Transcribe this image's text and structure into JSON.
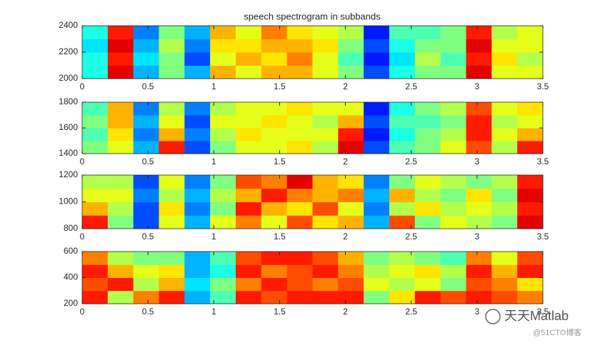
{
  "chart_data": [
    {
      "type": "heatmap",
      "title": "speech spectrogram in subbands",
      "colormap": "jet",
      "clim": [
        0,
        1
      ],
      "xlim": [
        0,
        3.5
      ],
      "xticks": [
        0,
        0.5,
        1,
        1.5,
        2,
        2.5,
        3,
        3.5
      ],
      "ylim": [
        2000,
        2400
      ],
      "yticks": [
        2000,
        2200,
        2400
      ],
      "values": [
        [
          0.4,
          0.9,
          0.3,
          0.5,
          0.3,
          0.7,
          0.6,
          0.7,
          0.7,
          0.6,
          0.5,
          0.2,
          0.4,
          0.5,
          0.5,
          0.9,
          0.6,
          0.6
        ],
        [
          0.4,
          0.85,
          0.35,
          0.5,
          0.2,
          0.6,
          0.7,
          0.65,
          0.75,
          0.6,
          0.45,
          0.15,
          0.35,
          0.55,
          0.45,
          0.85,
          0.65,
          0.55
        ],
        [
          0.35,
          0.9,
          0.3,
          0.55,
          0.25,
          0.65,
          0.65,
          0.7,
          0.7,
          0.65,
          0.5,
          0.2,
          0.4,
          0.5,
          0.5,
          0.9,
          0.6,
          0.6
        ],
        [
          0.4,
          0.85,
          0.25,
          0.5,
          0.3,
          0.7,
          0.6,
          0.75,
          0.65,
          0.6,
          0.55,
          0.15,
          0.45,
          0.45,
          0.5,
          0.85,
          0.55,
          0.6
        ]
      ]
    },
    {
      "type": "heatmap",
      "colormap": "jet",
      "clim": [
        0,
        1
      ],
      "xlim": [
        0,
        3.5
      ],
      "xticks": [
        0,
        0.5,
        1,
        1.5,
        2,
        2.5,
        3,
        3.5
      ],
      "ylim": [
        1400,
        1800
      ],
      "yticks": [
        1400,
        1600,
        1800
      ],
      "values": [
        [
          0.5,
          0.6,
          0.3,
          0.85,
          0.2,
          0.5,
          0.6,
          0.6,
          0.65,
          0.55,
          0.9,
          0.2,
          0.45,
          0.5,
          0.6,
          0.8,
          0.55,
          0.85
        ],
        [
          0.45,
          0.65,
          0.25,
          0.7,
          0.25,
          0.55,
          0.65,
          0.6,
          0.6,
          0.6,
          0.85,
          0.15,
          0.4,
          0.5,
          0.55,
          0.85,
          0.6,
          0.7
        ],
        [
          0.5,
          0.7,
          0.3,
          0.6,
          0.2,
          0.6,
          0.6,
          0.65,
          0.6,
          0.55,
          0.7,
          0.2,
          0.45,
          0.45,
          0.5,
          0.85,
          0.55,
          0.6
        ],
        [
          0.45,
          0.7,
          0.25,
          0.55,
          0.25,
          0.55,
          0.6,
          0.6,
          0.65,
          0.6,
          0.6,
          0.15,
          0.4,
          0.5,
          0.55,
          0.8,
          0.6,
          0.65
        ]
      ]
    },
    {
      "type": "heatmap",
      "colormap": "jet",
      "clim": [
        0,
        1
      ],
      "xlim": [
        0,
        3.5
      ],
      "xticks": [
        0,
        0.5,
        1,
        1.5,
        2,
        2.5,
        3,
        3.5
      ],
      "ylim": [
        800,
        1200
      ],
      "yticks": [
        800,
        1000,
        1200
      ],
      "values": [
        [
          0.85,
          0.5,
          0.2,
          0.6,
          0.3,
          0.6,
          0.75,
          0.6,
          0.8,
          0.65,
          0.7,
          0.3,
          0.8,
          0.5,
          0.6,
          0.55,
          0.5,
          0.9
        ],
        [
          0.7,
          0.55,
          0.2,
          0.65,
          0.25,
          0.5,
          0.85,
          0.7,
          0.65,
          0.8,
          0.6,
          0.25,
          0.55,
          0.65,
          0.55,
          0.6,
          0.55,
          0.85
        ],
        [
          0.6,
          0.6,
          0.25,
          0.55,
          0.3,
          0.55,
          0.7,
          0.85,
          0.75,
          0.7,
          0.75,
          0.3,
          0.7,
          0.55,
          0.5,
          0.65,
          0.5,
          0.9
        ],
        [
          0.55,
          0.55,
          0.2,
          0.6,
          0.25,
          0.5,
          0.8,
          0.75,
          0.9,
          0.7,
          0.65,
          0.25,
          0.5,
          0.6,
          0.55,
          0.5,
          0.55,
          0.85
        ]
      ]
    },
    {
      "type": "heatmap",
      "colormap": "jet",
      "clim": [
        0,
        1
      ],
      "xlim": [
        0,
        3.5
      ],
      "xticks": [
        0,
        0.5,
        1,
        1.5,
        2,
        2.5,
        3,
        3.5
      ],
      "ylim": [
        200,
        600
      ],
      "yticks": [
        200,
        400,
        600
      ],
      "values": [
        [
          0.85,
          0.55,
          0.75,
          0.85,
          0.3,
          0.45,
          0.85,
          0.8,
          0.85,
          0.85,
          0.85,
          0.5,
          0.65,
          0.85,
          0.8,
          0.85,
          0.8,
          0.75
        ],
        [
          0.8,
          0.85,
          0.55,
          0.7,
          0.35,
          0.5,
          0.75,
          0.85,
          0.8,
          0.75,
          0.8,
          0.6,
          0.55,
          0.6,
          0.5,
          0.8,
          0.75,
          0.65
        ],
        [
          0.85,
          0.7,
          0.6,
          0.65,
          0.3,
          0.4,
          0.85,
          0.75,
          0.8,
          0.85,
          0.75,
          0.55,
          0.6,
          0.65,
          0.55,
          0.85,
          0.7,
          0.85
        ],
        [
          0.75,
          0.55,
          0.5,
          0.5,
          0.3,
          0.45,
          0.8,
          0.85,
          0.85,
          0.8,
          0.7,
          0.5,
          0.55,
          0.5,
          0.45,
          0.75,
          0.6,
          0.8
        ]
      ]
    }
  ],
  "watermark": {
    "name": "天天Matlab",
    "source": "@51CTO博客"
  }
}
